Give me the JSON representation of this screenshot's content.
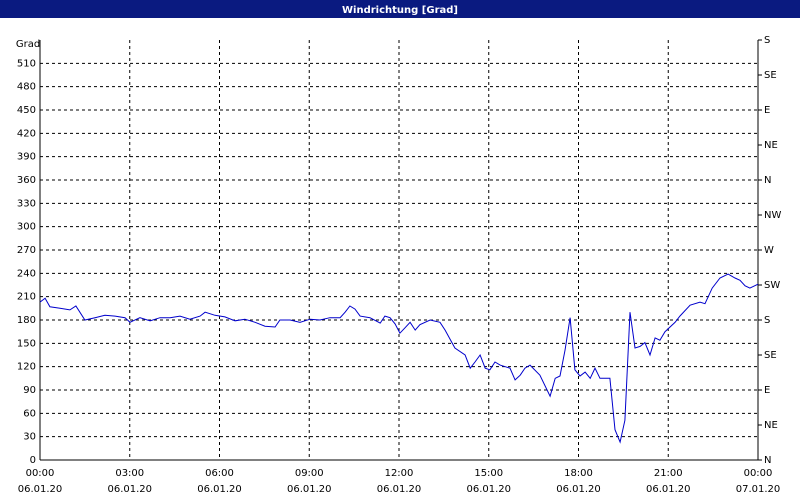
{
  "chart_data": {
    "type": "line",
    "title": "Windrichtung [Grad]",
    "y_label": "Grad",
    "x": [
      0,
      0.17,
      0.33,
      0.67,
      1.0,
      1.2,
      1.5,
      1.84,
      2.17,
      2.51,
      2.84,
      3.01,
      3.34,
      3.68,
      4.01,
      4.35,
      4.68,
      5.01,
      5.35,
      5.52,
      5.85,
      6.18,
      6.52,
      6.85,
      7.19,
      7.52,
      7.86,
      8.02,
      8.36,
      8.69,
      9.03,
      9.36,
      9.69,
      10.03,
      10.2,
      10.36,
      10.53,
      10.7,
      11.03,
      11.37,
      11.53,
      11.7,
      11.87,
      12.03,
      12.2,
      12.37,
      12.54,
      12.7,
      13.04,
      13.37,
      13.54,
      13.87,
      14.21,
      14.38,
      14.54,
      14.71,
      14.88,
      15.04,
      15.21,
      15.38,
      15.71,
      15.88,
      16.05,
      16.21,
      16.38,
      16.71,
      17.05,
      17.22,
      17.38,
      17.55,
      17.72,
      17.88,
      18.05,
      18.22,
      18.39,
      18.55,
      18.72,
      19.05,
      19.22,
      19.39,
      19.55,
      19.72,
      19.89,
      20.06,
      20.22,
      20.39,
      20.56,
      20.72,
      20.89,
      21.23,
      21.39,
      21.73,
      22.06,
      22.23,
      22.47,
      22.73,
      23.0,
      23.23,
      23.4,
      23.57,
      23.73,
      24
    ],
    "values": [
      203,
      208,
      197,
      195,
      193,
      198,
      180,
      183,
      186,
      185,
      183,
      177,
      183,
      179,
      183,
      183,
      185,
      181,
      185,
      190,
      186,
      184,
      179,
      181,
      177,
      172,
      171,
      180,
      180,
      177,
      181,
      180,
      183,
      183,
      190,
      198,
      194,
      185,
      183,
      176,
      185,
      183,
      175,
      163,
      170,
      177,
      167,
      174,
      180,
      177,
      167,
      144,
      135,
      118,
      126,
      135,
      118,
      116,
      126,
      122,
      118,
      103,
      109,
      118,
      122,
      109,
      82,
      105,
      108,
      141,
      183,
      116,
      108,
      113,
      105,
      118,
      105,
      105,
      39,
      23,
      51,
      190,
      144,
      146,
      151,
      135,
      157,
      154,
      165,
      177,
      185,
      199,
      203,
      201,
      221,
      234,
      239,
      234,
      231,
      224,
      221,
      226
    ],
    "color": "#0000cc",
    "xlim": [
      0,
      24
    ],
    "xticks": [
      {
        "value": 0,
        "label": "00:00"
      },
      {
        "value": 3,
        "label": "03:00"
      },
      {
        "value": 6,
        "label": "06:00"
      },
      {
        "value": 9,
        "label": "09:00"
      },
      {
        "value": 12,
        "label": "12:00"
      },
      {
        "value": 15,
        "label": "15:00"
      },
      {
        "value": 18,
        "label": "18:00"
      },
      {
        "value": 21,
        "label": "21:00"
      },
      {
        "value": 24,
        "label": "00:00"
      }
    ],
    "xtick_dates": [
      "06.01.20",
      "06.01.20",
      "06.01.20",
      "06.01.20",
      "06.01.20",
      "06.01.20",
      "06.01.20",
      "06.01.20",
      "07.01.20"
    ],
    "ylim": [
      0,
      540
    ],
    "yticks": [
      0,
      30,
      60,
      90,
      120,
      150,
      180,
      210,
      240,
      270,
      300,
      330,
      360,
      390,
      420,
      450,
      480,
      510
    ],
    "y2lim": [
      0,
      540
    ],
    "y2ticks": [
      {
        "value": 0,
        "label": "N"
      },
      {
        "value": 45,
        "label": "NE"
      },
      {
        "value": 90,
        "label": "E"
      },
      {
        "value": 135,
        "label": "SE"
      },
      {
        "value": 180,
        "label": "S"
      },
      {
        "value": 225,
        "label": "SW"
      },
      {
        "value": 270,
        "label": "W"
      },
      {
        "value": 315,
        "label": "NW"
      },
      {
        "value": 360,
        "label": "N"
      },
      {
        "value": 405,
        "label": "NE"
      },
      {
        "value": 450,
        "label": "E"
      },
      {
        "value": 495,
        "label": "SE"
      },
      {
        "value": 540,
        "label": "S"
      }
    ],
    "grid": true
  }
}
